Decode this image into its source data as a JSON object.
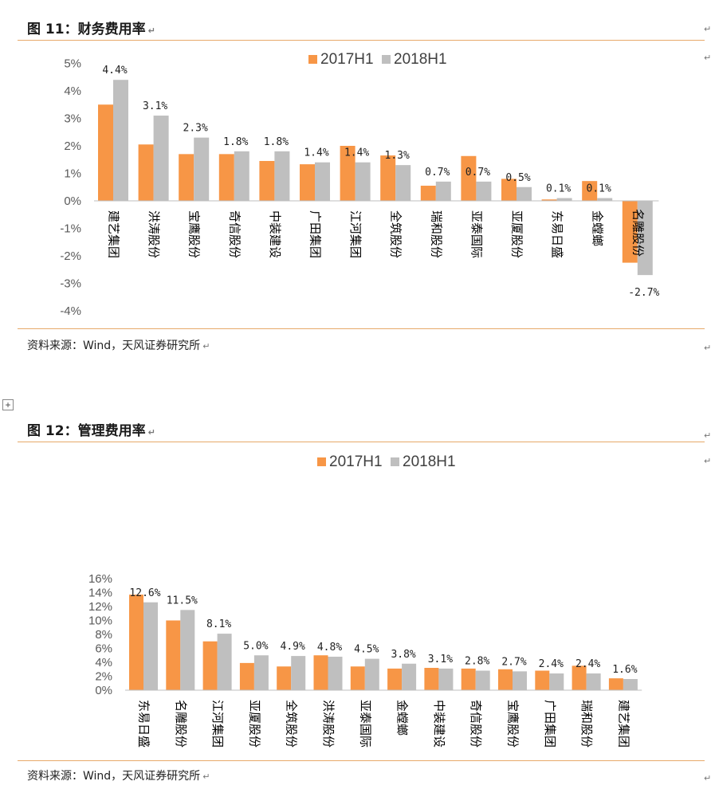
{
  "colors": {
    "s2017": "#f79646",
    "s2018": "#bfbfbf",
    "accent_rule": "#e7a96a"
  },
  "figures": [
    {
      "title": "图 11：财务费用率",
      "source": "资料来源：Wind，天风证券研究所"
    },
    {
      "title": "图 12：管理费用率",
      "source": "资料来源：Wind，天风证券研究所"
    }
  ],
  "chart_data": [
    {
      "type": "bar",
      "title": "财务费用率",
      "categories": [
        "建艺集团",
        "洪涛股份",
        "宝鹰股份",
        "奇信股份",
        "中装建设",
        "广田集团",
        "江河集团",
        "全筑股份",
        "瑞和股份",
        "亚泰国际",
        "亚厦股份",
        "东易日盛",
        "金螳螂",
        "名雕股份"
      ],
      "series": [
        {
          "name": "2017H1",
          "values": [
            3.5,
            2.05,
            1.7,
            1.7,
            1.45,
            1.33,
            2.0,
            1.65,
            0.55,
            1.63,
            0.8,
            0.05,
            0.72,
            -2.25
          ]
        },
        {
          "name": "2018H1",
          "values": [
            4.4,
            3.1,
            2.3,
            1.8,
            1.8,
            1.4,
            1.4,
            1.3,
            0.7,
            0.7,
            0.5,
            0.1,
            0.1,
            -2.7
          ]
        }
      ],
      "data_labels": [
        "4.4%",
        "3.1%",
        "2.3%",
        "1.8%",
        "1.8%",
        "1.4%",
        "1.4%",
        "1.3%",
        "0.7%",
        "0.7%",
        "0.5%",
        "0.1%",
        "0.1%",
        "-2.7%"
      ],
      "y_ticks": [
        "5%",
        "4%",
        "3%",
        "2%",
        "1%",
        "0%",
        "-1%",
        "-2%",
        "-3%",
        "-4%"
      ],
      "ylim": [
        -4,
        5
      ],
      "legend": [
        "2017H1",
        "2018H1"
      ],
      "legend_position": "top-right"
    },
    {
      "type": "bar",
      "title": "管理费用率",
      "categories": [
        "东易日盛",
        "名雕股份",
        "江河集团",
        "亚厦股份",
        "全筑股份",
        "洪涛股份",
        "亚泰国际",
        "金螳螂",
        "中装建设",
        "奇信股份",
        "宝鹰股份",
        "广田集团",
        "瑞和股份",
        "建艺集团"
      ],
      "series": [
        {
          "name": "2017H1",
          "values": [
            13.7,
            10.0,
            7.0,
            3.9,
            3.4,
            5.0,
            3.4,
            3.1,
            3.2,
            3.1,
            3.0,
            2.8,
            3.5,
            1.7
          ]
        },
        {
          "name": "2018H1",
          "values": [
            12.6,
            11.5,
            8.1,
            5.0,
            4.9,
            4.8,
            4.5,
            3.8,
            3.1,
            2.8,
            2.7,
            2.4,
            2.4,
            1.6
          ]
        }
      ],
      "data_labels": [
        "12.6%",
        "11.5%",
        "8.1%",
        "5.0%",
        "4.9%",
        "4.8%",
        "4.5%",
        "3.8%",
        "3.1%",
        "2.8%",
        "2.7%",
        "2.4%",
        "2.4%",
        "1.6%"
      ],
      "y_ticks": [
        "16%",
        "14%",
        "12%",
        "10%",
        "8%",
        "6%",
        "4%",
        "2%",
        "0%"
      ],
      "ylim": [
        0,
        16
      ],
      "legend": [
        "2017H1",
        "2018H1"
      ],
      "legend_position": "top-center"
    }
  ]
}
